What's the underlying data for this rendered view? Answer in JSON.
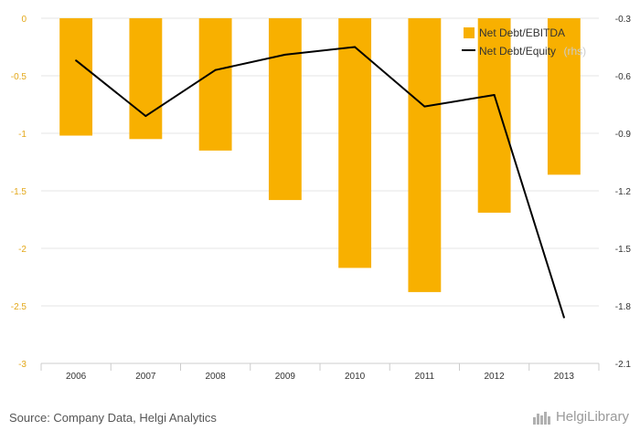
{
  "chart_data": {
    "type": "bar",
    "categories": [
      "2006",
      "2007",
      "2008",
      "2009",
      "2010",
      "2011",
      "2012",
      "2013"
    ],
    "series": [
      {
        "name": "Net Debt/EBITDA",
        "kind": "bar",
        "axis": "left",
        "color": "#f8b000",
        "values": [
          -1.02,
          -1.05,
          -1.15,
          -1.58,
          -2.17,
          -2.38,
          -1.69,
          -1.36
        ]
      },
      {
        "name": "Net Debt/Equity",
        "legend_suffix": "(rhs)",
        "kind": "line",
        "axis": "right",
        "color": "#000000",
        "values": [
          -0.52,
          -0.81,
          -0.57,
          -0.49,
          -0.45,
          -0.76,
          -0.7,
          -1.86
        ]
      }
    ],
    "yleft": {
      "ylim": [
        -3,
        0
      ],
      "ticks": [
        "0",
        "-0.5",
        "-1",
        "-1.5",
        "-2",
        "-2.5",
        "-3"
      ],
      "tick_values": [
        0,
        -0.5,
        -1,
        -1.5,
        -2,
        -2.5,
        -3
      ],
      "color": "#e3a81a"
    },
    "yright": {
      "ylim": [
        -2.1,
        -0.3
      ],
      "ticks": [
        "-0.3",
        "-0.6",
        "-0.9",
        "-1.2",
        "-1.5",
        "-1.8",
        "-2.1"
      ],
      "tick_values": [
        -0.3,
        -0.6,
        -0.9,
        -1.2,
        -1.5,
        -1.8,
        -2.1
      ],
      "color": "#333333"
    },
    "grid": true,
    "legend_position": "top-right"
  },
  "footer": {
    "source": "Source: Company Data, Helgi Analytics",
    "brand": "HelgiLibrary"
  }
}
